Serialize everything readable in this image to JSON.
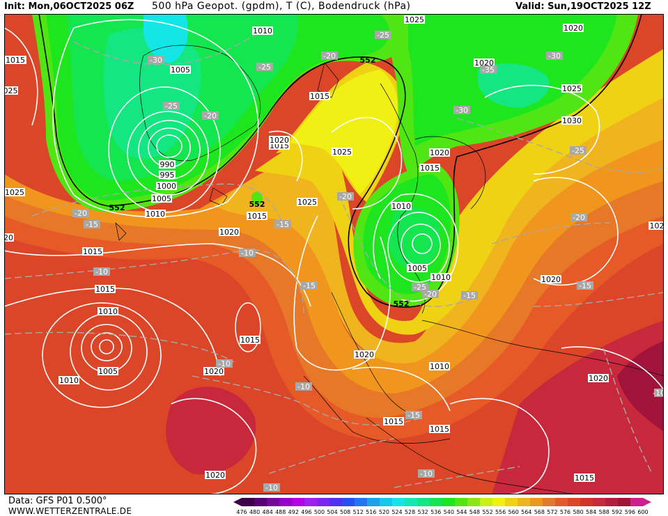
{
  "header": {
    "init": "Init: Mon,06OCT2025 06Z",
    "title": "500 hPa Geopot. (gpdm), T (C), Bodendruck (hPa)",
    "valid": "Valid: Sun,19OCT2025 12Z"
  },
  "footer": {
    "data_source": "Data: GFS P01 0.500°",
    "website": "WWW.WETTERZENTRALE.DE"
  },
  "legend": {
    "values": [
      "476",
      "480",
      "484",
      "488",
      "492",
      "496",
      "500",
      "504",
      "508",
      "512",
      "516",
      "520",
      "524",
      "528",
      "532",
      "536",
      "540",
      "544",
      "548",
      "552",
      "556",
      "560",
      "564",
      "568",
      "572",
      "576",
      "580",
      "584",
      "588",
      "592",
      "596",
      "600"
    ],
    "colors": [
      "#3c0048",
      "#58007a",
      "#7a00a0",
      "#9a00c8",
      "#b400e6",
      "#a020f0",
      "#7828f0",
      "#5032f0",
      "#2850f0",
      "#1e78f0",
      "#1ea0f0",
      "#14c8f0",
      "#14e6e6",
      "#14e6b4",
      "#14e682",
      "#14e650",
      "#1ee61e",
      "#50e614",
      "#8ce614",
      "#c8f014",
      "#f0f014",
      "#f0d214",
      "#f0b41e",
      "#f0961e",
      "#e67828",
      "#e65a28",
      "#dc4628",
      "#d23228",
      "#c8283c",
      "#b41e3c",
      "#a0143c",
      "#d21e8c"
    ]
  },
  "map": {
    "height_labels": [
      "552",
      "552",
      "552",
      "552",
      "552"
    ],
    "pressure_labels": [
      "1010",
      "1025",
      "1020",
      "1020",
      "1015",
      "1005",
      "990",
      "995",
      "1000",
      "1005",
      "1010",
      "1015",
      "1020",
      "1015",
      "1015",
      "1010",
      "1005",
      "1010",
      "1015",
      "1020",
      "1015",
      "1020",
      "1025",
      "1025",
      "1030",
      "1025",
      "1020",
      "1015",
      "1010",
      "1005",
      "1010",
      "1015",
      "1020",
      "1015",
      "1020",
      "1010",
      "1020",
      "1025",
      "1020",
      "1015",
      "1020",
      "1015",
      "1010"
    ],
    "temperature_labels": [
      "-25",
      "-30",
      "-25",
      "-25",
      "-20",
      "-20",
      "-30",
      "-35",
      "-30",
      "-25",
      "-20",
      "-20",
      "-15",
      "-15",
      "-10",
      "-10",
      "-20",
      "-15",
      "-25",
      "-20",
      "-15",
      "-20",
      "-15",
      "-10",
      "-10",
      "-10",
      "-15",
      "-10",
      "-10",
      "-10"
    ],
    "edge_labels": [
      "1015",
      "025",
      "1025",
      "20",
      "1025",
      "102",
      "1("
    ]
  }
}
